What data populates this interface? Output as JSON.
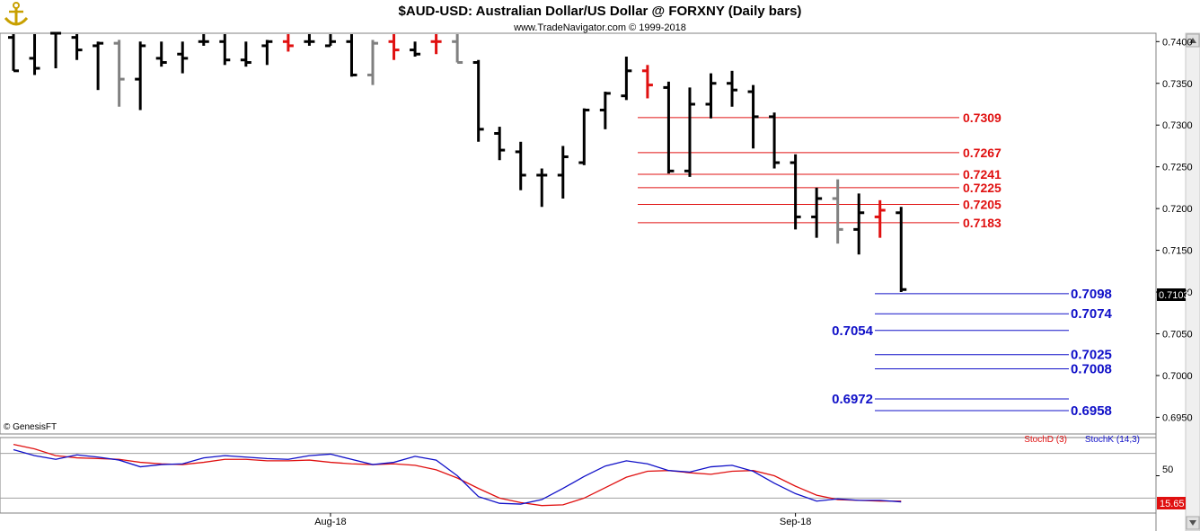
{
  "header": {
    "title": "$AUD-USD:  Australian Dollar/US Dollar @ FORXNY  (Daily bars)",
    "subtitle": "www.TradeNavigator.com © 1999-2018",
    "logo_icon": "anchor-icon",
    "copyright": "© GenesisFT"
  },
  "chart_data": [
    {
      "type": "ohlc",
      "ylim": [
        0.693,
        0.741
      ],
      "y_ticks": [
        "0.7400",
        "0.7350",
        "0.7300",
        "0.7250",
        "0.7200",
        "0.7150",
        "0.7100",
        "0.7050",
        "0.7000",
        "0.6950"
      ],
      "x_labels": [
        {
          "label": "Aug-18",
          "bar": 15
        },
        {
          "label": "Sep-18",
          "bar": 37
        }
      ],
      "last_price": "0.7103",
      "colors": {
        "up": "#000000",
        "down": "#000000",
        "red": "#e01010",
        "gray": "#808080"
      },
      "bars": [
        {
          "o": 0.7405,
          "h": 0.743,
          "l": 0.7365,
          "c": 0.7365,
          "color": "black"
        },
        {
          "o": 0.738,
          "h": 0.743,
          "l": 0.736,
          "c": 0.7368,
          "color": "black"
        },
        {
          "o": 0.741,
          "h": 0.743,
          "l": 0.7368,
          "c": 0.741,
          "color": "black"
        },
        {
          "o": 0.7405,
          "h": 0.742,
          "l": 0.7378,
          "c": 0.739,
          "color": "black"
        },
        {
          "o": 0.7395,
          "h": 0.74,
          "l": 0.7342,
          "c": 0.7398,
          "color": "black"
        },
        {
          "o": 0.7398,
          "h": 0.7402,
          "l": 0.7322,
          "c": 0.7355,
          "color": "gray"
        },
        {
          "o": 0.7355,
          "h": 0.74,
          "l": 0.7318,
          "c": 0.7395,
          "color": "black"
        },
        {
          "o": 0.738,
          "h": 0.74,
          "l": 0.737,
          "c": 0.7375,
          "color": "black"
        },
        {
          "o": 0.7385,
          "h": 0.74,
          "l": 0.7362,
          "c": 0.738,
          "color": "black"
        },
        {
          "o": 0.74,
          "h": 0.741,
          "l": 0.7395,
          "c": 0.74,
          "color": "black"
        },
        {
          "o": 0.74,
          "h": 0.741,
          "l": 0.7372,
          "c": 0.7378,
          "color": "black"
        },
        {
          "o": 0.7378,
          "h": 0.74,
          "l": 0.737,
          "c": 0.7375,
          "color": "black"
        },
        {
          "o": 0.7395,
          "h": 0.7402,
          "l": 0.7372,
          "c": 0.74,
          "color": "black"
        },
        {
          "o": 0.74,
          "h": 0.741,
          "l": 0.7388,
          "c": 0.7395,
          "color": "red"
        },
        {
          "o": 0.74,
          "h": 0.741,
          "l": 0.7395,
          "c": 0.74,
          "color": "black"
        },
        {
          "o": 0.7395,
          "h": 0.741,
          "l": 0.7395,
          "c": 0.74,
          "color": "black"
        },
        {
          "o": 0.74,
          "h": 0.741,
          "l": 0.7358,
          "c": 0.736,
          "color": "black"
        },
        {
          "o": 0.736,
          "h": 0.7402,
          "l": 0.7348,
          "c": 0.7398,
          "color": "gray"
        },
        {
          "o": 0.74,
          "h": 0.741,
          "l": 0.7378,
          "c": 0.739,
          "color": "red"
        },
        {
          "o": 0.739,
          "h": 0.74,
          "l": 0.7382,
          "c": 0.7385,
          "color": "black"
        },
        {
          "o": 0.74,
          "h": 0.741,
          "l": 0.7385,
          "c": 0.74,
          "color": "red"
        },
        {
          "o": 0.74,
          "h": 0.741,
          "l": 0.7375,
          "c": 0.7375,
          "color": "gray"
        },
        {
          "o": 0.7375,
          "h": 0.7378,
          "l": 0.728,
          "c": 0.7295,
          "color": "black"
        },
        {
          "o": 0.729,
          "h": 0.7298,
          "l": 0.7258,
          "c": 0.727,
          "color": "black"
        },
        {
          "o": 0.7268,
          "h": 0.728,
          "l": 0.7222,
          "c": 0.724,
          "color": "black"
        },
        {
          "o": 0.724,
          "h": 0.7248,
          "l": 0.7202,
          "c": 0.724,
          "color": "black"
        },
        {
          "o": 0.724,
          "h": 0.7275,
          "l": 0.7212,
          "c": 0.7262,
          "color": "black"
        },
        {
          "o": 0.7255,
          "h": 0.732,
          "l": 0.7252,
          "c": 0.7318,
          "color": "black"
        },
        {
          "o": 0.7318,
          "h": 0.734,
          "l": 0.7295,
          "c": 0.7338,
          "color": "black"
        },
        {
          "o": 0.7335,
          "h": 0.7382,
          "l": 0.733,
          "c": 0.7365,
          "color": "black"
        },
        {
          "o": 0.7365,
          "h": 0.7372,
          "l": 0.7332,
          "c": 0.7348,
          "color": "red"
        },
        {
          "o": 0.7345,
          "h": 0.7352,
          "l": 0.7242,
          "c": 0.7245,
          "color": "black"
        },
        {
          "o": 0.7245,
          "h": 0.7345,
          "l": 0.7238,
          "c": 0.7325,
          "color": "black"
        },
        {
          "o": 0.7325,
          "h": 0.7362,
          "l": 0.7308,
          "c": 0.735,
          "color": "black"
        },
        {
          "o": 0.735,
          "h": 0.7365,
          "l": 0.7322,
          "c": 0.7342,
          "color": "black"
        },
        {
          "o": 0.734,
          "h": 0.7348,
          "l": 0.7272,
          "c": 0.731,
          "color": "black"
        },
        {
          "o": 0.731,
          "h": 0.7315,
          "l": 0.7248,
          "c": 0.7255,
          "color": "black"
        },
        {
          "o": 0.7255,
          "h": 0.7265,
          "l": 0.7175,
          "c": 0.719,
          "color": "black"
        },
        {
          "o": 0.719,
          "h": 0.7225,
          "l": 0.7165,
          "c": 0.7212,
          "color": "black"
        },
        {
          "o": 0.7212,
          "h": 0.7235,
          "l": 0.7158,
          "c": 0.7175,
          "color": "gray"
        },
        {
          "o": 0.7175,
          "h": 0.7218,
          "l": 0.7145,
          "c": 0.7195,
          "color": "black"
        },
        {
          "o": 0.719,
          "h": 0.721,
          "l": 0.7165,
          "c": 0.7198,
          "color": "red"
        },
        {
          "o": 0.7195,
          "h": 0.7202,
          "l": 0.71,
          "c": 0.7103,
          "color": "black"
        }
      ]
    },
    {
      "type": "line",
      "series": [
        {
          "name": "StochD (3)",
          "color": "#e01010",
          "values": [
            92,
            86,
            77,
            74,
            73,
            72,
            68,
            66,
            65,
            68,
            72,
            72,
            70,
            70,
            71,
            68,
            66,
            65,
            66,
            64,
            58,
            47,
            33,
            20,
            14,
            10,
            11,
            20,
            34,
            48,
            56,
            57,
            54,
            52,
            56,
            57,
            50,
            36,
            24,
            18,
            17,
            16,
            16
          ]
        },
        {
          "name": "StochK (14,3)",
          "color": "#1010c8",
          "values": [
            85,
            77,
            72,
            78,
            75,
            71,
            62,
            65,
            66,
            74,
            77,
            75,
            73,
            72,
            77,
            79,
            72,
            65,
            68,
            76,
            71,
            50,
            22,
            13,
            12,
            18,
            33,
            49,
            63,
            70,
            66,
            57,
            55,
            62,
            64,
            56,
            40,
            26,
            16,
            19,
            17,
            17,
            15
          ]
        }
      ],
      "ylim": [
        0,
        100
      ],
      "y_ticks": [
        "50"
      ],
      "reference_lines": [
        20,
        80
      ],
      "last_value": "15.65"
    }
  ],
  "levels": {
    "red": [
      "0.7309",
      "0.7267",
      "0.7241",
      "0.7225",
      "0.7205",
      "0.7183"
    ],
    "blue": [
      "0.7098",
      "0.7074",
      "0.7054",
      "0.7025",
      "0.7008",
      "0.6972",
      "0.6958"
    ]
  }
}
